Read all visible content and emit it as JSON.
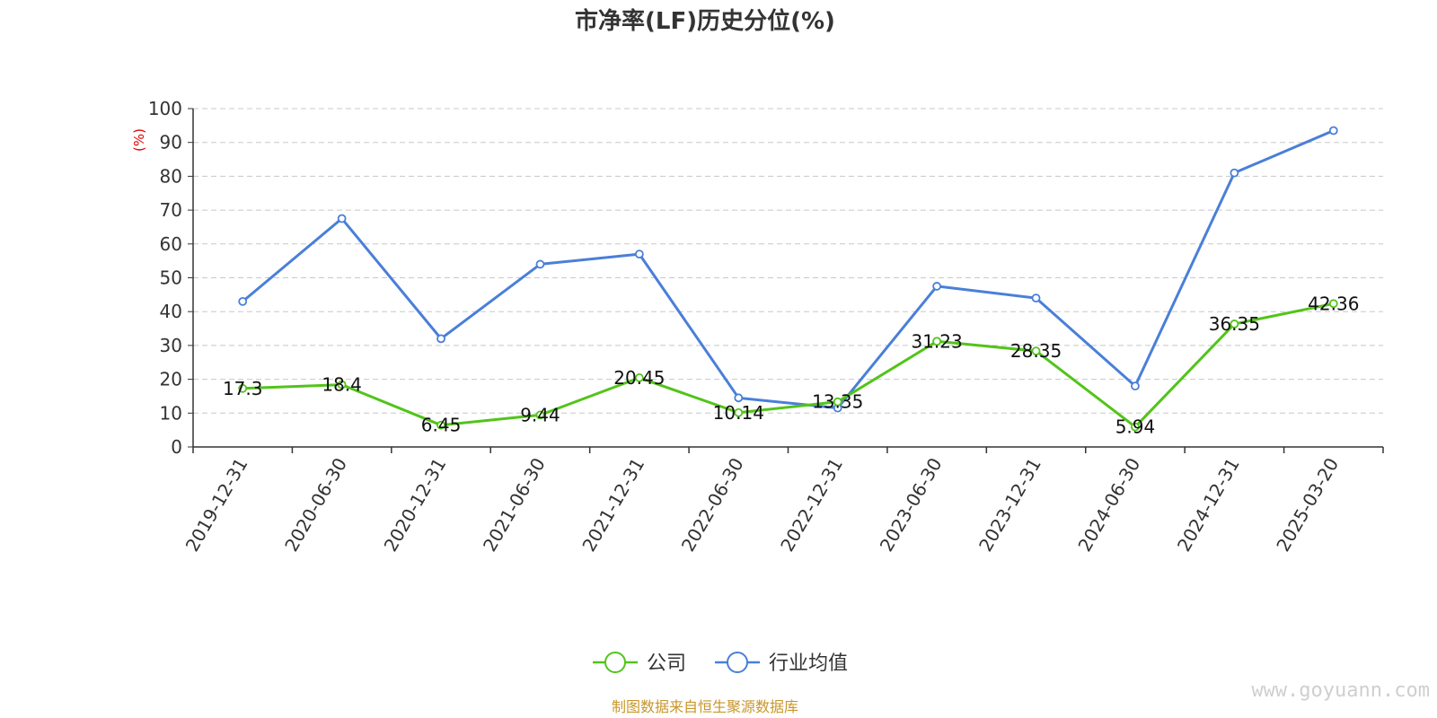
{
  "chart_data": {
    "type": "line",
    "title": "市净率(LF)历史分位(%)",
    "y_unit": "(%)",
    "ylim": [
      0,
      100
    ],
    "y_ticks": [
      0,
      10,
      20,
      30,
      40,
      50,
      60,
      70,
      80,
      90,
      100
    ],
    "grid": true,
    "legend_position": "bottom-center",
    "categories": [
      "2019-12-31",
      "2020-06-30",
      "2020-12-31",
      "2021-06-30",
      "2021-12-31",
      "2022-06-30",
      "2022-12-31",
      "2023-06-30",
      "2023-12-31",
      "2024-06-30",
      "2024-12-31",
      "2025-03-20"
    ],
    "series": [
      {
        "name": "公司",
        "color": "#52c41a",
        "labels_shown": true,
        "values": [
          17.3,
          18.4,
          6.45,
          9.44,
          20.45,
          10.14,
          13.35,
          31.23,
          28.35,
          5.94,
          36.35,
          42.36
        ]
      },
      {
        "name": "行业均值",
        "color": "#4a7fd8",
        "labels_shown": false,
        "values": [
          43,
          67.5,
          32,
          54,
          57,
          14.5,
          11.5,
          47.5,
          44,
          18,
          81,
          93.5
        ]
      }
    ]
  },
  "footer": {
    "source": "制图数据来自恒生聚源数据库",
    "watermark": "www.goyuann.com"
  }
}
